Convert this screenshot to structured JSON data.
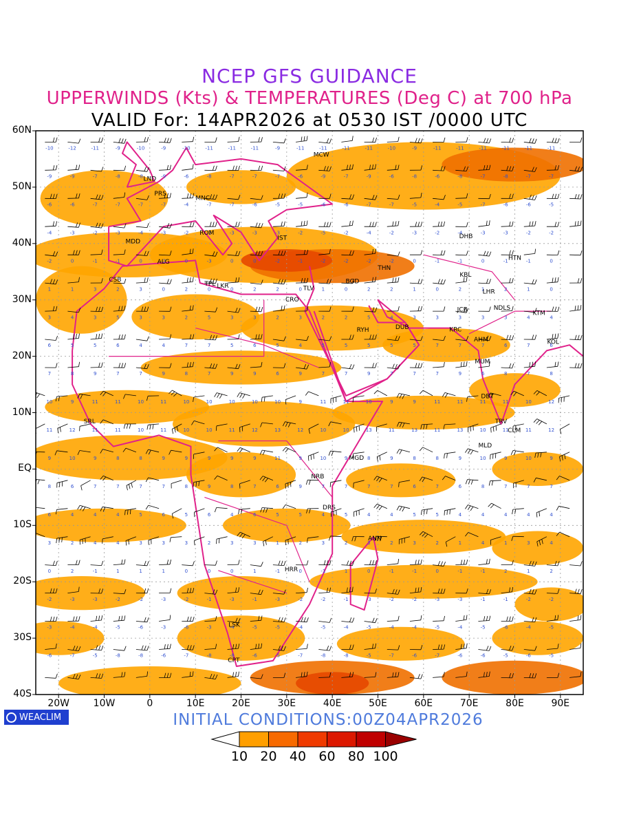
{
  "title": {
    "line1": "NCEP GFS GUIDANCE",
    "line2": "UPPERWINDS (Kts) & TEMPERATURES (Deg C) at 700 hPa",
    "line3": "VALID For: 14APR2026 at 0530 IST /0000 UTC"
  },
  "initial_conditions": "INITIAL  CONDITIONS:00Z04APR2026",
  "logo_text": "WEACLIM",
  "latitude_labels": [
    "60N",
    "50N",
    "40N",
    "30N",
    "20N",
    "10N",
    "EQ",
    "10S",
    "20S",
    "30S",
    "40S"
  ],
  "longitude_labels": [
    "20W",
    "10W",
    "0",
    "10E",
    "20E",
    "30E",
    "40E",
    "50E",
    "60E",
    "70E",
    "80E",
    "90E"
  ],
  "colorbar": {
    "labels": [
      "10",
      "20",
      "40",
      "60",
      "80",
      "100"
    ],
    "colors": [
      "#ffffff",
      "#ff9f00",
      "#f76a00",
      "#ef3a00",
      "#dc1800",
      "#c00000",
      "#9a0000"
    ]
  },
  "colors": {
    "fill_light": "#ffa500",
    "fill_mid": "#f07000",
    "fill_strong": "#e54800",
    "coast": "#e0218a",
    "temp_text": "#3050d0",
    "barb": "#000000"
  },
  "stations": [
    {
      "code": "LND",
      "lon": 0,
      "lat": 51.5
    },
    {
      "code": "PRS",
      "lon": 2.3,
      "lat": 48.9
    },
    {
      "code": "MNC",
      "lon": 11.6,
      "lat": 48.1
    },
    {
      "code": "MCW",
      "lon": 37.6,
      "lat": 55.8
    },
    {
      "code": "ROM",
      "lon": 12.5,
      "lat": 41.9
    },
    {
      "code": "MDD",
      "lon": -3.7,
      "lat": 40.4
    },
    {
      "code": "IST",
      "lon": 29,
      "lat": 41
    },
    {
      "code": "ALG",
      "lon": 3,
      "lat": 36.8
    },
    {
      "code": "CSB",
      "lon": -7.6,
      "lat": 33.6
    },
    {
      "code": "TPL",
      "lon": 13.2,
      "lat": 32.9
    },
    {
      "code": "LKR",
      "lon": 16,
      "lat": 32.5
    },
    {
      "code": "TLV",
      "lon": 34.8,
      "lat": 32.1
    },
    {
      "code": "CRO",
      "lon": 31.2,
      "lat": 30.1
    },
    {
      "code": "THN",
      "lon": 51.4,
      "lat": 35.7
    },
    {
      "code": "BGD",
      "lon": 44.4,
      "lat": 33.3
    },
    {
      "code": "DHB",
      "lon": 69.3,
      "lat": 41.3
    },
    {
      "code": "KBL",
      "lon": 69.2,
      "lat": 34.5
    },
    {
      "code": "HTN",
      "lon": 80,
      "lat": 37.5
    },
    {
      "code": "LHR",
      "lon": 74.3,
      "lat": 31.5
    },
    {
      "code": "NDLS",
      "lon": 77.2,
      "lat": 28.6
    },
    {
      "code": "JCB",
      "lon": 68.5,
      "lat": 28.3
    },
    {
      "code": "KTM",
      "lon": 85.3,
      "lat": 27.7
    },
    {
      "code": "RYH",
      "lon": 46.7,
      "lat": 24.7
    },
    {
      "code": "DUB",
      "lon": 55.3,
      "lat": 25.2
    },
    {
      "code": "KRC",
      "lon": 67,
      "lat": 24.8
    },
    {
      "code": "AHM",
      "lon": 72.6,
      "lat": 23
    },
    {
      "code": "KOL",
      "lon": 88.4,
      "lat": 22.6
    },
    {
      "code": "MUM",
      "lon": 72.9,
      "lat": 19.1
    },
    {
      "code": "DBT",
      "lon": 74,
      "lat": 12.9
    },
    {
      "code": "TRV",
      "lon": 77,
      "lat": 8.5
    },
    {
      "code": "CLM",
      "lon": 79.9,
      "lat": 6.9
    },
    {
      "code": "MLD",
      "lon": 73.5,
      "lat": 4.2
    },
    {
      "code": "SRL",
      "lon": -13.2,
      "lat": 8.5
    },
    {
      "code": "MGD",
      "lon": 45.3,
      "lat": 2
    },
    {
      "code": "NRB",
      "lon": 36.8,
      "lat": -1.3
    },
    {
      "code": "DRS",
      "lon": 39.3,
      "lat": -6.8
    },
    {
      "code": "ANN",
      "lon": 49.3,
      "lat": -12.3
    },
    {
      "code": "HRR",
      "lon": 31,
      "lat": -17.8
    },
    {
      "code": "LSK",
      "lon": 18.5,
      "lat": -27.6
    },
    {
      "code": "CPT",
      "lon": 18.4,
      "lat": -33.9
    }
  ]
}
